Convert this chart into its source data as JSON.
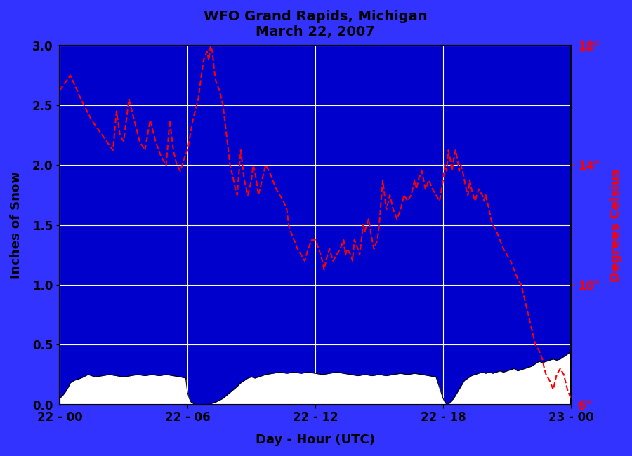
{
  "title_line1": "WFO Grand Rapids, Michigan",
  "title_line2": "March 22, 2007",
  "xlabel": "Day - Hour (UTC)",
  "ylabel_left": "Inches of Snow",
  "ylabel_right": "Degrees Celsius",
  "plot_bg_color": "#0000CC",
  "fig_bg_color": "#3333FF",
  "snow_fill_color": "white",
  "snow_line_color": "black",
  "temp_line_color": "red",
  "xlim": [
    0,
    1440
  ],
  "ylim_left": [
    0.0,
    3.0
  ],
  "ylim_right": [
    6,
    18
  ],
  "yticks_left": [
    0.0,
    0.5,
    1.0,
    1.5,
    2.0,
    2.5,
    3.0
  ],
  "yticks_right_values": [
    6,
    10,
    14,
    18
  ],
  "yticks_right_labels": [
    "6°",
    "10°",
    "14°",
    "18°"
  ],
  "xtick_positions": [
    0,
    360,
    720,
    1080,
    1440
  ],
  "xtick_labels": [
    "22 - 00",
    "22 - 06",
    "22 - 12",
    "22 - 18",
    "23 - 00"
  ],
  "grid_color": "white",
  "grid_linewidth": 0.8,
  "temp_segments": [
    [
      0,
      16.5
    ],
    [
      30,
      17.0
    ],
    [
      60,
      16.2
    ],
    [
      90,
      15.5
    ],
    [
      120,
      15.0
    ],
    [
      150,
      14.5
    ],
    [
      160,
      15.8
    ],
    [
      170,
      15.0
    ],
    [
      180,
      14.8
    ],
    [
      195,
      16.2
    ],
    [
      210,
      15.5
    ],
    [
      225,
      14.8
    ],
    [
      240,
      14.5
    ],
    [
      255,
      15.5
    ],
    [
      270,
      14.8
    ],
    [
      285,
      14.3
    ],
    [
      300,
      14.0
    ],
    [
      310,
      15.5
    ],
    [
      320,
      14.5
    ],
    [
      330,
      14.0
    ],
    [
      340,
      13.8
    ],
    [
      350,
      14.2
    ],
    [
      360,
      14.5
    ],
    [
      375,
      15.5
    ],
    [
      390,
      16.2
    ],
    [
      405,
      17.5
    ],
    [
      415,
      17.8
    ],
    [
      420,
      17.5
    ],
    [
      425,
      18.0
    ],
    [
      430,
      17.8
    ],
    [
      435,
      17.2
    ],
    [
      440,
      16.8
    ],
    [
      450,
      16.5
    ],
    [
      460,
      16.0
    ],
    [
      465,
      15.5
    ],
    [
      470,
      15.0
    ],
    [
      475,
      14.5
    ],
    [
      480,
      14.0
    ],
    [
      490,
      13.5
    ],
    [
      495,
      13.2
    ],
    [
      500,
      13.0
    ],
    [
      510,
      14.5
    ],
    [
      515,
      14.0
    ],
    [
      520,
      13.5
    ],
    [
      530,
      13.0
    ],
    [
      540,
      13.5
    ],
    [
      545,
      14.0
    ],
    [
      550,
      13.8
    ],
    [
      560,
      13.0
    ],
    [
      570,
      13.5
    ],
    [
      580,
      14.0
    ],
    [
      590,
      13.8
    ],
    [
      600,
      13.5
    ],
    [
      610,
      13.2
    ],
    [
      620,
      13.0
    ],
    [
      630,
      12.8
    ],
    [
      640,
      12.5
    ],
    [
      645,
      12.0
    ],
    [
      650,
      11.8
    ],
    [
      660,
      11.5
    ],
    [
      670,
      11.2
    ],
    [
      680,
      11.0
    ],
    [
      690,
      10.8
    ],
    [
      700,
      11.2
    ],
    [
      710,
      11.5
    ],
    [
      720,
      11.5
    ],
    [
      730,
      11.2
    ],
    [
      735,
      11.0
    ],
    [
      740,
      10.8
    ],
    [
      745,
      10.5
    ],
    [
      750,
      10.8
    ],
    [
      755,
      11.0
    ],
    [
      760,
      11.2
    ],
    [
      765,
      11.0
    ],
    [
      770,
      10.8
    ],
    [
      780,
      11.0
    ],
    [
      790,
      11.2
    ],
    [
      800,
      11.5
    ],
    [
      805,
      11.0
    ],
    [
      810,
      11.2
    ],
    [
      820,
      11.0
    ],
    [
      825,
      10.8
    ],
    [
      830,
      11.5
    ],
    [
      840,
      11.2
    ],
    [
      845,
      11.0
    ],
    [
      850,
      11.5
    ],
    [
      855,
      12.0
    ],
    [
      860,
      11.8
    ],
    [
      870,
      12.2
    ],
    [
      880,
      11.5
    ],
    [
      885,
      11.2
    ],
    [
      895,
      11.5
    ],
    [
      900,
      12.0
    ],
    [
      910,
      13.5
    ],
    [
      920,
      12.5
    ],
    [
      930,
      13.0
    ],
    [
      940,
      12.5
    ],
    [
      950,
      12.2
    ],
    [
      960,
      12.5
    ],
    [
      970,
      13.0
    ],
    [
      980,
      12.8
    ],
    [
      990,
      13.0
    ],
    [
      1000,
      13.5
    ],
    [
      1005,
      13.2
    ],
    [
      1010,
      13.5
    ],
    [
      1020,
      13.8
    ],
    [
      1030,
      13.2
    ],
    [
      1040,
      13.5
    ],
    [
      1050,
      13.2
    ],
    [
      1060,
      13.0
    ],
    [
      1070,
      12.8
    ],
    [
      1080,
      13.5
    ],
    [
      1085,
      14.0
    ],
    [
      1090,
      13.8
    ],
    [
      1095,
      14.5
    ],
    [
      1100,
      14.2
    ],
    [
      1105,
      13.8
    ],
    [
      1110,
      14.2
    ],
    [
      1115,
      14.5
    ],
    [
      1120,
      14.2
    ],
    [
      1125,
      13.8
    ],
    [
      1130,
      14.0
    ],
    [
      1135,
      13.8
    ],
    [
      1140,
      13.5
    ],
    [
      1145,
      13.2
    ],
    [
      1150,
      13.0
    ],
    [
      1155,
      13.5
    ],
    [
      1160,
      13.2
    ],
    [
      1165,
      13.0
    ],
    [
      1170,
      12.8
    ],
    [
      1175,
      13.0
    ],
    [
      1180,
      13.2
    ],
    [
      1190,
      13.0
    ],
    [
      1195,
      12.8
    ],
    [
      1200,
      13.0
    ],
    [
      1210,
      12.5
    ],
    [
      1215,
      12.2
    ],
    [
      1220,
      12.0
    ],
    [
      1230,
      11.8
    ],
    [
      1240,
      11.5
    ],
    [
      1250,
      11.2
    ],
    [
      1260,
      11.0
    ],
    [
      1270,
      10.8
    ],
    [
      1280,
      10.5
    ],
    [
      1290,
      10.2
    ],
    [
      1300,
      10.0
    ],
    [
      1310,
      9.5
    ],
    [
      1320,
      9.0
    ],
    [
      1330,
      8.5
    ],
    [
      1340,
      8.0
    ],
    [
      1350,
      7.8
    ],
    [
      1360,
      7.5
    ],
    [
      1365,
      7.2
    ],
    [
      1370,
      7.0
    ],
    [
      1380,
      6.8
    ],
    [
      1390,
      6.5
    ],
    [
      1400,
      7.0
    ],
    [
      1410,
      7.2
    ],
    [
      1420,
      7.0
    ],
    [
      1430,
      6.5
    ],
    [
      1440,
      6.2
    ]
  ],
  "snow_segments": [
    [
      0,
      0.05
    ],
    [
      10,
      0.08
    ],
    [
      20,
      0.12
    ],
    [
      30,
      0.18
    ],
    [
      40,
      0.2
    ],
    [
      60,
      0.22
    ],
    [
      80,
      0.25
    ],
    [
      100,
      0.23
    ],
    [
      120,
      0.24
    ],
    [
      140,
      0.25
    ],
    [
      160,
      0.24
    ],
    [
      180,
      0.23
    ],
    [
      200,
      0.24
    ],
    [
      220,
      0.25
    ],
    [
      240,
      0.24
    ],
    [
      260,
      0.25
    ],
    [
      280,
      0.24
    ],
    [
      300,
      0.25
    ],
    [
      320,
      0.24
    ],
    [
      340,
      0.23
    ],
    [
      355,
      0.22
    ],
    [
      360,
      0.1
    ],
    [
      365,
      0.05
    ],
    [
      370,
      0.02
    ],
    [
      380,
      0.0
    ],
    [
      400,
      0.0
    ],
    [
      420,
      0.0
    ],
    [
      440,
      0.02
    ],
    [
      460,
      0.05
    ],
    [
      480,
      0.1
    ],
    [
      500,
      0.15
    ],
    [
      510,
      0.18
    ],
    [
      520,
      0.2
    ],
    [
      530,
      0.22
    ],
    [
      540,
      0.23
    ],
    [
      550,
      0.22
    ],
    [
      560,
      0.23
    ],
    [
      570,
      0.24
    ],
    [
      580,
      0.25
    ],
    [
      600,
      0.26
    ],
    [
      620,
      0.27
    ],
    [
      640,
      0.26
    ],
    [
      660,
      0.27
    ],
    [
      680,
      0.26
    ],
    [
      700,
      0.27
    ],
    [
      720,
      0.26
    ],
    [
      740,
      0.25
    ],
    [
      760,
      0.26
    ],
    [
      780,
      0.27
    ],
    [
      800,
      0.26
    ],
    [
      820,
      0.25
    ],
    [
      840,
      0.24
    ],
    [
      860,
      0.25
    ],
    [
      880,
      0.24
    ],
    [
      900,
      0.25
    ],
    [
      920,
      0.24
    ],
    [
      940,
      0.25
    ],
    [
      960,
      0.26
    ],
    [
      980,
      0.25
    ],
    [
      1000,
      0.26
    ],
    [
      1020,
      0.25
    ],
    [
      1040,
      0.24
    ],
    [
      1060,
      0.23
    ],
    [
      1080,
      0.05
    ],
    [
      1085,
      0.02
    ],
    [
      1090,
      0.0
    ],
    [
      1095,
      0.0
    ],
    [
      1100,
      0.02
    ],
    [
      1110,
      0.05
    ],
    [
      1120,
      0.1
    ],
    [
      1130,
      0.15
    ],
    [
      1140,
      0.2
    ],
    [
      1150,
      0.22
    ],
    [
      1160,
      0.24
    ],
    [
      1170,
      0.25
    ],
    [
      1180,
      0.26
    ],
    [
      1190,
      0.27
    ],
    [
      1200,
      0.26
    ],
    [
      1210,
      0.27
    ],
    [
      1220,
      0.26
    ],
    [
      1230,
      0.27
    ],
    [
      1240,
      0.28
    ],
    [
      1250,
      0.27
    ],
    [
      1260,
      0.28
    ],
    [
      1270,
      0.29
    ],
    [
      1280,
      0.3
    ],
    [
      1290,
      0.28
    ],
    [
      1300,
      0.29
    ],
    [
      1310,
      0.3
    ],
    [
      1320,
      0.31
    ],
    [
      1330,
      0.32
    ],
    [
      1340,
      0.34
    ],
    [
      1350,
      0.36
    ],
    [
      1360,
      0.35
    ],
    [
      1370,
      0.36
    ],
    [
      1380,
      0.37
    ],
    [
      1390,
      0.38
    ],
    [
      1400,
      0.37
    ],
    [
      1410,
      0.38
    ],
    [
      1420,
      0.4
    ],
    [
      1430,
      0.42
    ],
    [
      1440,
      0.44
    ]
  ]
}
